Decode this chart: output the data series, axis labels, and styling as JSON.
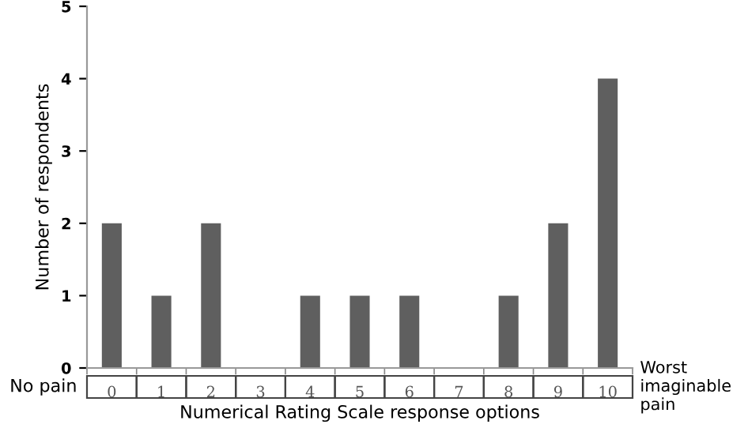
{
  "chart_data": {
    "type": "bar",
    "categories": [
      "0",
      "1",
      "2",
      "3",
      "4",
      "5",
      "6",
      "7",
      "8",
      "9",
      "10"
    ],
    "values": [
      2,
      1,
      2,
      0,
      1,
      1,
      1,
      0,
      1,
      2,
      4
    ],
    "color": "#5f5f5f",
    "xlabel": "Numerical Rating Scale response options",
    "ylabel": "Number of respondents",
    "ylim": [
      0,
      5
    ],
    "yticks": [
      0,
      1,
      2,
      3,
      4,
      5
    ],
    "grid": false,
    "annotations": [
      "No pain",
      "Worst imaginable pain"
    ]
  }
}
